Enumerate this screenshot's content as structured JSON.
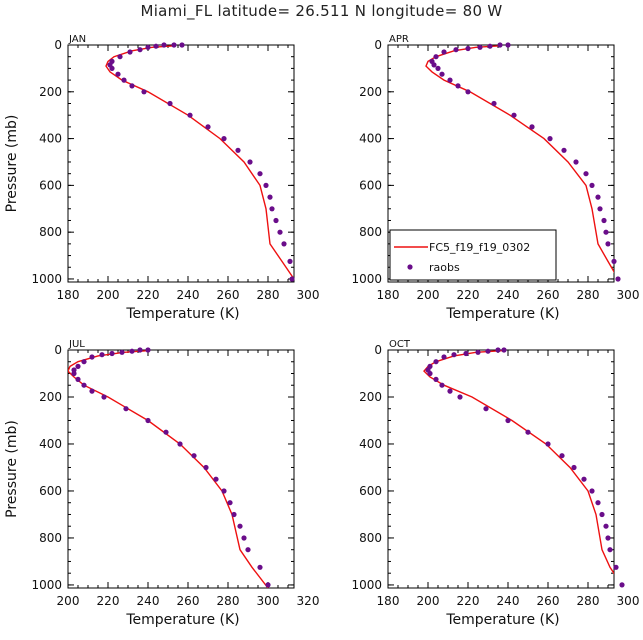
{
  "title": "Miami_FL  latitude= 26.511 N longitude= 80 W",
  "colors": {
    "model": "#ee1111",
    "obs": "#6a0d8a",
    "axis": "#000000"
  },
  "legend": {
    "model_label": "FC5_f19_f19_0302",
    "obs_label": "raobs",
    "panel": "APR"
  },
  "chart_data": [
    {
      "type": "line",
      "panel": "JAN",
      "title": "JAN",
      "xlabel": "Temperature (K)",
      "ylabel": "Pressure (mb)",
      "xlim": [
        180,
        300
      ],
      "ylim": [
        1013,
        0
      ],
      "xticks": [
        180,
        200,
        220,
        240,
        260,
        280,
        300
      ],
      "yticks": [
        0,
        200,
        400,
        600,
        800,
        1000
      ],
      "model": {
        "name": "FC5_f19_f19_0302",
        "temperature": [
          234,
          222,
          212,
          203,
          200,
          199,
          201,
          207,
          220,
          240,
          256,
          268,
          276,
          279,
          281,
          287,
          294
        ],
        "pressure": [
          3,
          10,
          25,
          50,
          70,
          90,
          115,
          150,
          200,
          300,
          400,
          500,
          600,
          700,
          850,
          925,
          1013
        ]
      },
      "obs": {
        "name": "raobs",
        "temperature": [
          237,
          233,
          228,
          224,
          220,
          216,
          211,
          206,
          202,
          201,
          202,
          205,
          208,
          212,
          218,
          231,
          241,
          250,
          258,
          265,
          271,
          276,
          279,
          281,
          282,
          284,
          286,
          288,
          291,
          292
        ],
        "pressure": [
          0,
          0,
          0,
          5,
          10,
          20,
          30,
          50,
          70,
          85,
          100,
          125,
          150,
          175,
          200,
          250,
          300,
          350,
          400,
          450,
          500,
          550,
          600,
          650,
          700,
          750,
          800,
          850,
          925,
          1000
        ]
      }
    },
    {
      "type": "line",
      "panel": "APR",
      "title": "APR",
      "xlabel": "Temperature (K)",
      "ylabel": "",
      "xlim": [
        180,
        300
      ],
      "ylim": [
        1013,
        0
      ],
      "xticks": [
        180,
        200,
        220,
        240,
        260,
        280,
        300
      ],
      "yticks": [
        0,
        200,
        400,
        600,
        800,
        1000
      ],
      "model": {
        "name": "FC5_f19_f19_0302",
        "temperature": [
          237,
          224,
          213,
          204,
          200,
          199,
          202,
          208,
          221,
          241,
          258,
          270,
          279,
          282,
          285,
          290,
          296
        ],
        "pressure": [
          3,
          10,
          25,
          50,
          70,
          90,
          115,
          150,
          200,
          300,
          400,
          500,
          600,
          700,
          850,
          925,
          1013
        ]
      },
      "obs": {
        "name": "raobs",
        "temperature": [
          240,
          236,
          231,
          226,
          220,
          214,
          208,
          204,
          202,
          203,
          205,
          207,
          211,
          215,
          220,
          233,
          243,
          252,
          261,
          268,
          274,
          279,
          282,
          285,
          286,
          288,
          289,
          290,
          293,
          295
        ],
        "pressure": [
          0,
          0,
          5,
          10,
          15,
          20,
          30,
          50,
          70,
          85,
          100,
          125,
          150,
          175,
          200,
          250,
          300,
          350,
          400,
          450,
          500,
          550,
          600,
          650,
          700,
          750,
          800,
          850,
          925,
          1000
        ]
      }
    },
    {
      "type": "line",
      "panel": "JUL",
      "title": "JUL",
      "xlabel": "Temperature (K)",
      "ylabel": "Pressure (mb)",
      "xlim": [
        200,
        320
      ],
      "ylim": [
        1013,
        0
      ],
      "xticks": [
        200,
        220,
        240,
        260,
        280,
        300,
        320
      ],
      "yticks": [
        0,
        200,
        400,
        600,
        800,
        1000
      ],
      "model": {
        "name": "FC5_f19_f19_0302",
        "temperature": [
          240,
          228,
          215,
          205,
          201,
          200,
          203,
          208,
          220,
          240,
          256,
          268,
          277,
          282,
          286,
          292,
          300
        ],
        "pressure": [
          3,
          10,
          25,
          50,
          70,
          90,
          115,
          150,
          200,
          300,
          400,
          500,
          600,
          700,
          850,
          925,
          1013
        ]
      },
      "obs": {
        "name": "raobs",
        "temperature": [
          240,
          236,
          232,
          227,
          222,
          217,
          212,
          208,
          205,
          203,
          203,
          205,
          208,
          212,
          218,
          229,
          240,
          249,
          256,
          263,
          269,
          274,
          278,
          281,
          283,
          286,
          288,
          290,
          296,
          300
        ],
        "pressure": [
          0,
          0,
          5,
          10,
          15,
          20,
          30,
          50,
          70,
          85,
          100,
          125,
          150,
          175,
          200,
          250,
          300,
          350,
          400,
          450,
          500,
          550,
          600,
          650,
          700,
          750,
          800,
          850,
          925,
          1000
        ]
      }
    },
    {
      "type": "line",
      "panel": "OCT",
      "title": "OCT",
      "xlabel": "Temperature (K)",
      "ylabel": "",
      "xlim": [
        180,
        300
      ],
      "ylim": [
        1013,
        0
      ],
      "xticks": [
        180,
        200,
        220,
        240,
        260,
        280,
        300
      ],
      "yticks": [
        0,
        200,
        400,
        600,
        800,
        1000
      ],
      "model": {
        "name": "FC5_f19_f19_0302",
        "temperature": [
          237,
          224,
          213,
          204,
          200,
          198,
          201,
          208,
          222,
          242,
          259,
          271,
          280,
          284,
          287,
          291,
          298
        ],
        "pressure": [
          3,
          10,
          25,
          50,
          70,
          90,
          115,
          150,
          200,
          300,
          400,
          500,
          600,
          700,
          850,
          925,
          1013
        ]
      },
      "obs": {
        "name": "raobs",
        "temperature": [
          238,
          235,
          230,
          225,
          219,
          213,
          208,
          204,
          201,
          200,
          201,
          204,
          207,
          211,
          216,
          229,
          240,
          250,
          260,
          267,
          273,
          278,
          282,
          285,
          287,
          289,
          290,
          291,
          294,
          297
        ],
        "pressure": [
          0,
          0,
          5,
          10,
          15,
          20,
          30,
          50,
          70,
          85,
          100,
          125,
          150,
          175,
          200,
          250,
          300,
          350,
          400,
          450,
          500,
          550,
          600,
          650,
          700,
          750,
          800,
          850,
          925,
          1000
        ]
      }
    }
  ]
}
